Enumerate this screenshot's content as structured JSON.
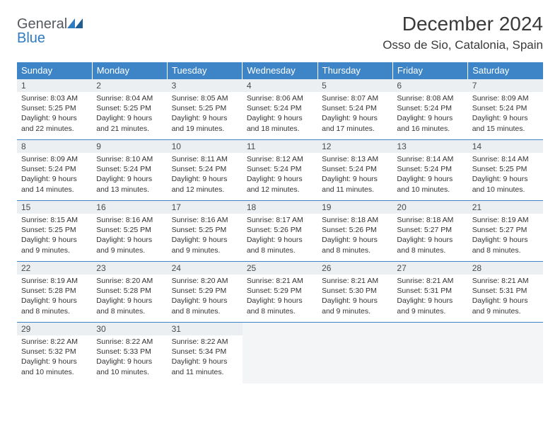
{
  "logo": {
    "general": "General",
    "blue": "Blue"
  },
  "title": "December 2024",
  "subtitle": "Osso de Sio, Catalonia, Spain",
  "colors": {
    "header_bg": "#3d85c6",
    "header_fg": "#ffffff",
    "daynum_bg": "#eceff1",
    "rule": "#3d85c6",
    "logo_gray": "#555a5f",
    "logo_blue": "#2f7bbf"
  },
  "weekdays": [
    "Sunday",
    "Monday",
    "Tuesday",
    "Wednesday",
    "Thursday",
    "Friday",
    "Saturday"
  ],
  "weeks": [
    [
      {
        "n": "1",
        "sr": "Sunrise: 8:03 AM",
        "ss": "Sunset: 5:25 PM",
        "dl1": "Daylight: 9 hours",
        "dl2": "and 22 minutes."
      },
      {
        "n": "2",
        "sr": "Sunrise: 8:04 AM",
        "ss": "Sunset: 5:25 PM",
        "dl1": "Daylight: 9 hours",
        "dl2": "and 21 minutes."
      },
      {
        "n": "3",
        "sr": "Sunrise: 8:05 AM",
        "ss": "Sunset: 5:25 PM",
        "dl1": "Daylight: 9 hours",
        "dl2": "and 19 minutes."
      },
      {
        "n": "4",
        "sr": "Sunrise: 8:06 AM",
        "ss": "Sunset: 5:24 PM",
        "dl1": "Daylight: 9 hours",
        "dl2": "and 18 minutes."
      },
      {
        "n": "5",
        "sr": "Sunrise: 8:07 AM",
        "ss": "Sunset: 5:24 PM",
        "dl1": "Daylight: 9 hours",
        "dl2": "and 17 minutes."
      },
      {
        "n": "6",
        "sr": "Sunrise: 8:08 AM",
        "ss": "Sunset: 5:24 PM",
        "dl1": "Daylight: 9 hours",
        "dl2": "and 16 minutes."
      },
      {
        "n": "7",
        "sr": "Sunrise: 8:09 AM",
        "ss": "Sunset: 5:24 PM",
        "dl1": "Daylight: 9 hours",
        "dl2": "and 15 minutes."
      }
    ],
    [
      {
        "n": "8",
        "sr": "Sunrise: 8:09 AM",
        "ss": "Sunset: 5:24 PM",
        "dl1": "Daylight: 9 hours",
        "dl2": "and 14 minutes."
      },
      {
        "n": "9",
        "sr": "Sunrise: 8:10 AM",
        "ss": "Sunset: 5:24 PM",
        "dl1": "Daylight: 9 hours",
        "dl2": "and 13 minutes."
      },
      {
        "n": "10",
        "sr": "Sunrise: 8:11 AM",
        "ss": "Sunset: 5:24 PM",
        "dl1": "Daylight: 9 hours",
        "dl2": "and 12 minutes."
      },
      {
        "n": "11",
        "sr": "Sunrise: 8:12 AM",
        "ss": "Sunset: 5:24 PM",
        "dl1": "Daylight: 9 hours",
        "dl2": "and 12 minutes."
      },
      {
        "n": "12",
        "sr": "Sunrise: 8:13 AM",
        "ss": "Sunset: 5:24 PM",
        "dl1": "Daylight: 9 hours",
        "dl2": "and 11 minutes."
      },
      {
        "n": "13",
        "sr": "Sunrise: 8:14 AM",
        "ss": "Sunset: 5:24 PM",
        "dl1": "Daylight: 9 hours",
        "dl2": "and 10 minutes."
      },
      {
        "n": "14",
        "sr": "Sunrise: 8:14 AM",
        "ss": "Sunset: 5:25 PM",
        "dl1": "Daylight: 9 hours",
        "dl2": "and 10 minutes."
      }
    ],
    [
      {
        "n": "15",
        "sr": "Sunrise: 8:15 AM",
        "ss": "Sunset: 5:25 PM",
        "dl1": "Daylight: 9 hours",
        "dl2": "and 9 minutes."
      },
      {
        "n": "16",
        "sr": "Sunrise: 8:16 AM",
        "ss": "Sunset: 5:25 PM",
        "dl1": "Daylight: 9 hours",
        "dl2": "and 9 minutes."
      },
      {
        "n": "17",
        "sr": "Sunrise: 8:16 AM",
        "ss": "Sunset: 5:25 PM",
        "dl1": "Daylight: 9 hours",
        "dl2": "and 9 minutes."
      },
      {
        "n": "18",
        "sr": "Sunrise: 8:17 AM",
        "ss": "Sunset: 5:26 PM",
        "dl1": "Daylight: 9 hours",
        "dl2": "and 8 minutes."
      },
      {
        "n": "19",
        "sr": "Sunrise: 8:18 AM",
        "ss": "Sunset: 5:26 PM",
        "dl1": "Daylight: 9 hours",
        "dl2": "and 8 minutes."
      },
      {
        "n": "20",
        "sr": "Sunrise: 8:18 AM",
        "ss": "Sunset: 5:27 PM",
        "dl1": "Daylight: 9 hours",
        "dl2": "and 8 minutes."
      },
      {
        "n": "21",
        "sr": "Sunrise: 8:19 AM",
        "ss": "Sunset: 5:27 PM",
        "dl1": "Daylight: 9 hours",
        "dl2": "and 8 minutes."
      }
    ],
    [
      {
        "n": "22",
        "sr": "Sunrise: 8:19 AM",
        "ss": "Sunset: 5:28 PM",
        "dl1": "Daylight: 9 hours",
        "dl2": "and 8 minutes."
      },
      {
        "n": "23",
        "sr": "Sunrise: 8:20 AM",
        "ss": "Sunset: 5:28 PM",
        "dl1": "Daylight: 9 hours",
        "dl2": "and 8 minutes."
      },
      {
        "n": "24",
        "sr": "Sunrise: 8:20 AM",
        "ss": "Sunset: 5:29 PM",
        "dl1": "Daylight: 9 hours",
        "dl2": "and 8 minutes."
      },
      {
        "n": "25",
        "sr": "Sunrise: 8:21 AM",
        "ss": "Sunset: 5:29 PM",
        "dl1": "Daylight: 9 hours",
        "dl2": "and 8 minutes."
      },
      {
        "n": "26",
        "sr": "Sunrise: 8:21 AM",
        "ss": "Sunset: 5:30 PM",
        "dl1": "Daylight: 9 hours",
        "dl2": "and 9 minutes."
      },
      {
        "n": "27",
        "sr": "Sunrise: 8:21 AM",
        "ss": "Sunset: 5:31 PM",
        "dl1": "Daylight: 9 hours",
        "dl2": "and 9 minutes."
      },
      {
        "n": "28",
        "sr": "Sunrise: 8:21 AM",
        "ss": "Sunset: 5:31 PM",
        "dl1": "Daylight: 9 hours",
        "dl2": "and 9 minutes."
      }
    ],
    [
      {
        "n": "29",
        "sr": "Sunrise: 8:22 AM",
        "ss": "Sunset: 5:32 PM",
        "dl1": "Daylight: 9 hours",
        "dl2": "and 10 minutes."
      },
      {
        "n": "30",
        "sr": "Sunrise: 8:22 AM",
        "ss": "Sunset: 5:33 PM",
        "dl1": "Daylight: 9 hours",
        "dl2": "and 10 minutes."
      },
      {
        "n": "31",
        "sr": "Sunrise: 8:22 AM",
        "ss": "Sunset: 5:34 PM",
        "dl1": "Daylight: 9 hours",
        "dl2": "and 11 minutes."
      },
      null,
      null,
      null,
      null
    ]
  ]
}
